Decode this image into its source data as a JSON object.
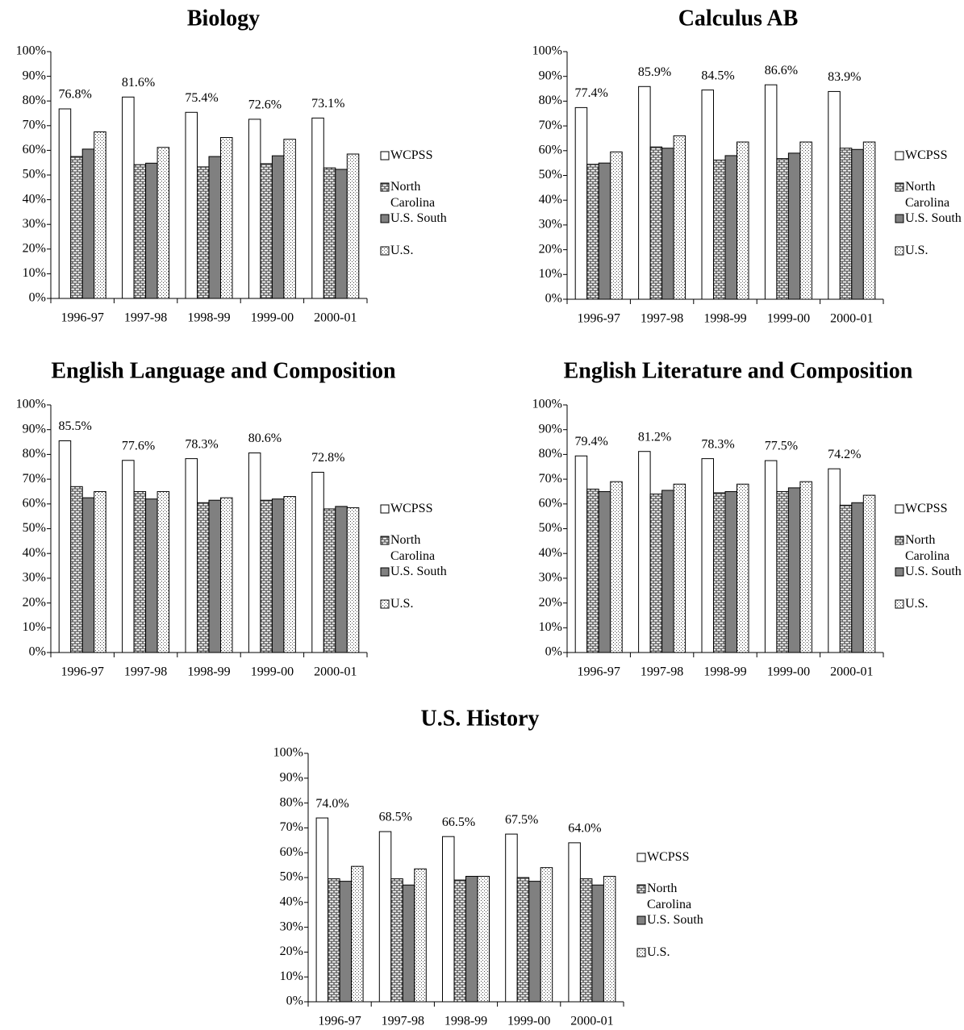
{
  "chart_data": [
    {
      "type": "bar",
      "title": "Biology",
      "categories": [
        "1996-97",
        "1997-98",
        "1998-99",
        "1999-00",
        "2000-01"
      ],
      "series": [
        {
          "name": "WCPSS",
          "color": "#ffffff",
          "pattern": "solid",
          "values": [
            76.8,
            81.6,
            75.4,
            72.6,
            73.1
          ],
          "value_labels": [
            "76.8%",
            "81.6%",
            "75.4%",
            "72.6%",
            "73.1%"
          ]
        },
        {
          "name": "North Carolina",
          "color": "#b0b0b0",
          "pattern": "brick",
          "values": [
            57.5,
            54.2,
            53.3,
            54.6,
            52.9
          ]
        },
        {
          "name": "U.S. South",
          "color": "#808080",
          "pattern": "solid",
          "values": [
            60.5,
            54.8,
            57.5,
            57.8,
            52.3
          ]
        },
        {
          "name": "U.S.",
          "color": "#ffffff",
          "pattern": "dots",
          "values": [
            67.5,
            61.2,
            65.2,
            64.5,
            58.5
          ]
        }
      ],
      "ylim": [
        0,
        100
      ],
      "yticks": [
        {
          "value": 0,
          "label": "0%"
        },
        {
          "value": 10,
          "label": "10%"
        },
        {
          "value": 20,
          "label": "20%"
        },
        {
          "value": 30,
          "label": "30%"
        },
        {
          "value": 40,
          "label": "40%"
        },
        {
          "value": 50,
          "label": "50%"
        },
        {
          "value": 60,
          "label": "60%"
        },
        {
          "value": 70,
          "label": "70%"
        },
        {
          "value": 80,
          "label": "80%"
        },
        {
          "value": 90,
          "label": "90%"
        },
        {
          "value": 100,
          "label": "100%"
        }
      ],
      "legend": "right"
    },
    {
      "type": "bar",
      "title": "Calculus AB",
      "categories": [
        "1996-97",
        "1997-98",
        "1998-99",
        "1999-00",
        "2000-01"
      ],
      "series": [
        {
          "name": "WCPSS",
          "color": "#ffffff",
          "pattern": "solid",
          "values": [
            77.4,
            85.9,
            84.5,
            86.6,
            83.9
          ],
          "value_labels": [
            "77.4%",
            "85.9%",
            "84.5%",
            "86.6%",
            "83.9%"
          ]
        },
        {
          "name": "North Carolina",
          "color": "#b0b0b0",
          "pattern": "brick",
          "values": [
            54.5,
            61.5,
            56.2,
            56.8,
            61
          ]
        },
        {
          "name": "U.S. South",
          "color": "#808080",
          "pattern": "solid",
          "values": [
            55,
            61,
            58,
            59,
            60.5
          ]
        },
        {
          "name": "U.S.",
          "color": "#ffffff",
          "pattern": "dots",
          "values": [
            59.5,
            66,
            63.5,
            63.5,
            63.5
          ]
        }
      ],
      "ylim": [
        0,
        100
      ],
      "yticks": [
        {
          "value": 0,
          "label": "0%"
        },
        {
          "value": 10,
          "label": "10%"
        },
        {
          "value": 20,
          "label": "20%"
        },
        {
          "value": 30,
          "label": "30%"
        },
        {
          "value": 40,
          "label": "40%"
        },
        {
          "value": 50,
          "label": "50%"
        },
        {
          "value": 60,
          "label": "60%"
        },
        {
          "value": 70,
          "label": "70%"
        },
        {
          "value": 80,
          "label": "80%"
        },
        {
          "value": 90,
          "label": "90%"
        },
        {
          "value": 100,
          "label": "100%"
        }
      ],
      "legend": "right"
    },
    {
      "type": "bar",
      "title": "English Language and Composition",
      "categories": [
        "1996-97",
        "1997-98",
        "1998-99",
        "1999-00",
        "2000-01"
      ],
      "series": [
        {
          "name": "WCPSS",
          "color": "#ffffff",
          "pattern": "solid",
          "values": [
            85.5,
            77.6,
            78.3,
            80.6,
            72.8
          ],
          "value_labels": [
            "85.5%",
            "77.6%",
            "78.3%",
            "80.6%",
            "72.8%"
          ]
        },
        {
          "name": "North Carolina",
          "color": "#b0b0b0",
          "pattern": "brick",
          "values": [
            67,
            65,
            60.5,
            61.5,
            58
          ]
        },
        {
          "name": "U.S. South",
          "color": "#808080",
          "pattern": "solid",
          "values": [
            62.5,
            62,
            61.5,
            62,
            59
          ]
        },
        {
          "name": "U.S.",
          "color": "#ffffff",
          "pattern": "dots",
          "values": [
            65,
            65,
            62.5,
            63,
            58.5
          ]
        }
      ],
      "ylim": [
        0,
        100
      ],
      "yticks": [
        {
          "value": 0,
          "label": "0%"
        },
        {
          "value": 10,
          "label": "10%"
        },
        {
          "value": 20,
          "label": "20%"
        },
        {
          "value": 30,
          "label": "30%"
        },
        {
          "value": 40,
          "label": "40%"
        },
        {
          "value": 50,
          "label": "50%"
        },
        {
          "value": 60,
          "label": "60%"
        },
        {
          "value": 70,
          "label": "70%"
        },
        {
          "value": 80,
          "label": "80%"
        },
        {
          "value": 90,
          "label": "90%"
        },
        {
          "value": 100,
          "label": "100%"
        }
      ],
      "legend": "right"
    },
    {
      "type": "bar",
      "title": "English Literature and Composition",
      "categories": [
        "1996-97",
        "1997-98",
        "1998-99",
        "1999-00",
        "2000-01"
      ],
      "series": [
        {
          "name": "WCPSS",
          "color": "#ffffff",
          "pattern": "solid",
          "values": [
            79.4,
            81.2,
            78.3,
            77.5,
            74.2
          ],
          "value_labels": [
            "79.4%",
            "81.2%",
            "78.3%",
            "77.5%",
            "74.2%"
          ]
        },
        {
          "name": "North Carolina",
          "color": "#b0b0b0",
          "pattern": "brick",
          "values": [
            66,
            64,
            64.5,
            65,
            59.5
          ]
        },
        {
          "name": "U.S. South",
          "color": "#808080",
          "pattern": "solid",
          "values": [
            65,
            65.5,
            65,
            66.5,
            60.5
          ]
        },
        {
          "name": "U.S.",
          "color": "#ffffff",
          "pattern": "dots",
          "values": [
            69,
            68,
            68,
            69,
            63.5
          ]
        }
      ],
      "ylim": [
        0,
        100
      ],
      "yticks": [
        {
          "value": 0,
          "label": "0%"
        },
        {
          "value": 10,
          "label": "10%"
        },
        {
          "value": 20,
          "label": "20%"
        },
        {
          "value": 30,
          "label": "30%"
        },
        {
          "value": 40,
          "label": "40%"
        },
        {
          "value": 50,
          "label": "50%"
        },
        {
          "value": 60,
          "label": "60%"
        },
        {
          "value": 70,
          "label": "70%"
        },
        {
          "value": 80,
          "label": "80%"
        },
        {
          "value": 90,
          "label": "90%"
        },
        {
          "value": 100,
          "label": "100%"
        }
      ],
      "legend": "right"
    },
    {
      "type": "bar",
      "title": "U.S. History",
      "categories": [
        "1996-97",
        "1997-98",
        "1998-99",
        "1999-00",
        "2000-01"
      ],
      "series": [
        {
          "name": "WCPSS",
          "color": "#ffffff",
          "pattern": "solid",
          "values": [
            74.0,
            68.5,
            66.5,
            67.5,
            64.0
          ],
          "value_labels": [
            "74.0%",
            "68.5%",
            "66.5%",
            "67.5%",
            "64.0%"
          ]
        },
        {
          "name": "North Carolina",
          "color": "#b0b0b0",
          "pattern": "brick",
          "values": [
            49.5,
            49.5,
            49,
            50,
            49.5
          ]
        },
        {
          "name": "U.S. South",
          "color": "#808080",
          "pattern": "solid",
          "values": [
            48.5,
            47,
            50.5,
            48.5,
            47
          ]
        },
        {
          "name": "U.S.",
          "color": "#ffffff",
          "pattern": "dots",
          "values": [
            54.5,
            53.5,
            50.5,
            54,
            50.5
          ]
        }
      ],
      "ylim": [
        0,
        100
      ],
      "yticks": [
        {
          "value": 0,
          "label": "0%"
        },
        {
          "value": 10,
          "label": "10%"
        },
        {
          "value": 20,
          "label": "20%"
        },
        {
          "value": 30,
          "label": "30%"
        },
        {
          "value": 40,
          "label": "40%"
        },
        {
          "value": 50,
          "label": "50%"
        },
        {
          "value": 60,
          "label": "60%"
        },
        {
          "value": 70,
          "label": "70%"
        },
        {
          "value": 80,
          "label": "80%"
        },
        {
          "value": 90,
          "label": "90%"
        },
        {
          "value": 100,
          "label": "100%"
        }
      ],
      "legend": "right"
    }
  ]
}
